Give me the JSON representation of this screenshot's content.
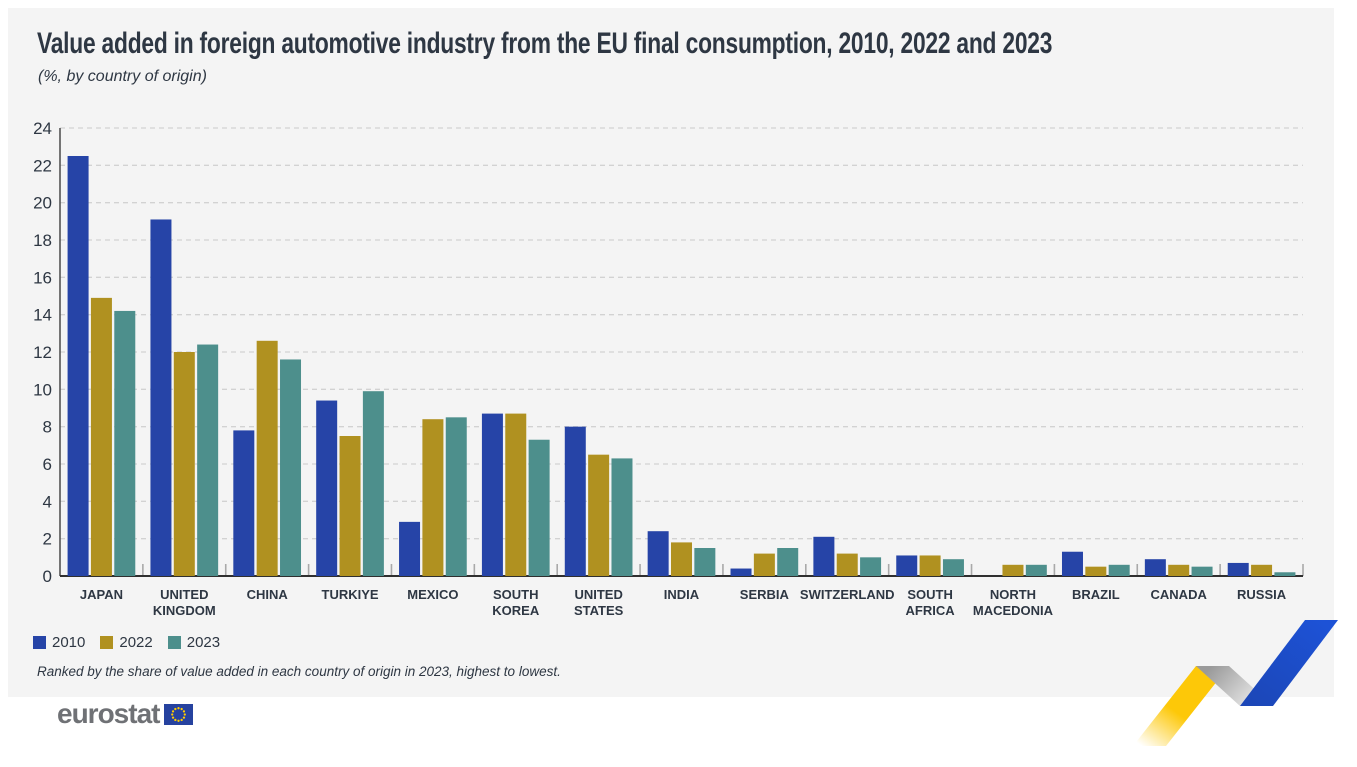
{
  "header": {
    "title": "Value added in foreign automotive industry from the EU final consumption, 2010, 2022 and 2023",
    "subtitle": "(%, by country of origin)"
  },
  "legend": {
    "items": [
      {
        "label": "2010",
        "color": "#2644a7"
      },
      {
        "label": "2022",
        "color": "#b09120"
      },
      {
        "label": "2023",
        "color": "#4d8f8c"
      }
    ]
  },
  "footnote": "Ranked by the share of value added in each country of origin in 2023, highest to lowest.",
  "branding": {
    "logo_text": "eurostat",
    "flag_blue": "#26429f",
    "flag_star_color": "#ffcc00"
  },
  "chart_data": {
    "type": "bar",
    "title": "Value added in foreign automotive industry from the EU final consumption, 2010, 2022 and 2023",
    "subtitle": "(%, by country of origin)",
    "categories": [
      "JAPAN",
      "UNITED KINGDOM",
      "CHINA",
      "TURKIYE",
      "MEXICO",
      "SOUTH KOREA",
      "UNITED STATES",
      "INDIA",
      "SERBIA",
      "SWITZERLAND",
      "SOUTH AFRICA",
      "NORTH MACEDONIA",
      "BRAZIL",
      "CANADA",
      "RUSSIA"
    ],
    "series": [
      {
        "name": "2010",
        "color": "#2644a7",
        "values": [
          22.5,
          19.1,
          7.8,
          9.4,
          2.9,
          8.7,
          8.0,
          2.4,
          0.4,
          2.1,
          1.1,
          null,
          1.3,
          0.9,
          0.7
        ]
      },
      {
        "name": "2022",
        "color": "#b09120",
        "values": [
          14.9,
          12.0,
          12.6,
          7.5,
          8.4,
          8.7,
          6.5,
          1.8,
          1.2,
          1.2,
          1.1,
          0.6,
          0.5,
          0.6,
          0.6
        ]
      },
      {
        "name": "2023",
        "color": "#4d8f8c",
        "values": [
          14.2,
          12.4,
          11.6,
          9.9,
          8.5,
          7.3,
          6.3,
          1.5,
          1.5,
          1.0,
          0.9,
          0.6,
          0.6,
          0.5,
          0.2
        ]
      }
    ],
    "xlabel": "",
    "ylabel": "(%, by country of origin)",
    "ylim": [
      0,
      24
    ],
    "ytick_step": 2,
    "yticks": [
      0,
      2,
      4,
      6,
      8,
      10,
      12,
      14,
      16,
      18,
      20,
      22,
      24
    ],
    "grid": "horizontal-dashed",
    "legend_position": "bottom-left"
  }
}
